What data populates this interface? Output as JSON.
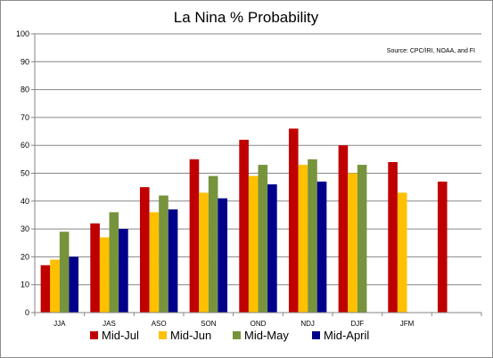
{
  "chart_data": {
    "type": "bar",
    "title": "La Nina % Probability",
    "source": "Source: CPC/IRI, NOAA, and FI",
    "categories": [
      "JJA",
      "JAS",
      "ASO",
      "SON",
      "OND",
      "NDJ",
      "DJF",
      "JFM",
      ""
    ],
    "ylim": [
      0,
      100
    ],
    "yticks": [
      0,
      10,
      20,
      30,
      40,
      50,
      60,
      70,
      80,
      90,
      100
    ],
    "grid": true,
    "legend": "bottom",
    "series": [
      {
        "name": "Mid-Jul",
        "color": "#c00000",
        "values": [
          17,
          32,
          45,
          55,
          62,
          66,
          60,
          54,
          47
        ]
      },
      {
        "name": "Mid-Jun",
        "color": "#ffc000",
        "values": [
          19,
          27,
          36,
          43,
          49,
          53,
          50,
          43,
          null
        ]
      },
      {
        "name": "Mid-May",
        "color": "#77933c",
        "values": [
          29,
          36,
          42,
          49,
          53,
          55,
          53,
          null,
          null
        ]
      },
      {
        "name": "Mid-April",
        "color": "#00008b",
        "values": [
          20,
          30,
          37,
          41,
          46,
          47,
          null,
          null,
          null
        ]
      }
    ]
  }
}
